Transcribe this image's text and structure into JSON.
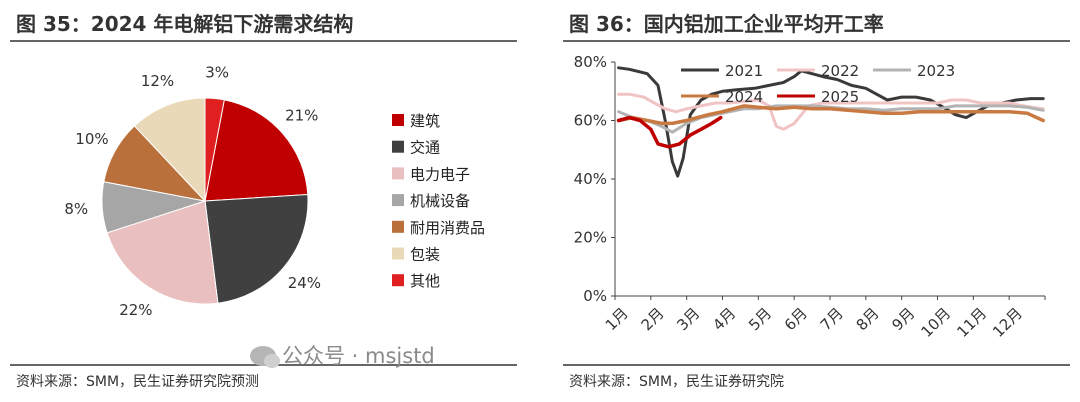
{
  "left": {
    "title": "图 35：2024 年电解铝下游需求结构",
    "source": "资料来源：SMM，民生证券研究院预测"
  },
  "right": {
    "title": "图 36：国内铝加工企业平均开工率",
    "source": "资料来源：SMM，民生证券研究院"
  },
  "watermark": "公众号 · msjstd",
  "chart_data": [
    {
      "type": "pie",
      "title": "2024 年电解铝下游需求结构",
      "slices": [
        {
          "label": "建筑",
          "value": 21,
          "display": "21%",
          "color": "#c00000"
        },
        {
          "label": "交通",
          "value": 24,
          "display": "24%",
          "color": "#404040"
        },
        {
          "label": "电力电子",
          "value": 22,
          "display": "22%",
          "color": "#eabfbf"
        },
        {
          "label": "机械设备",
          "value": 8,
          "display": "8%",
          "color": "#a6a6a6"
        },
        {
          "label": "耐用消费品",
          "value": 10,
          "display": "10%",
          "color": "#b9703a"
        },
        {
          "label": "包装",
          "value": 12,
          "display": "12%",
          "color": "#ead9b8"
        },
        {
          "label": "其他",
          "value": 3,
          "display": "3%",
          "color": "#e02020"
        }
      ],
      "legend_position": "right"
    },
    {
      "type": "line",
      "title": "国内铝加工企业平均开工率",
      "x_tick_labels": [
        "1月",
        "2月",
        "3月",
        "4月",
        "5月",
        "6月",
        "7月",
        "8月",
        "9月",
        "10月",
        "11月",
        "12月"
      ],
      "y_tick_labels": [
        "0%",
        "20%",
        "40%",
        "60%",
        "80%"
      ],
      "ylim": [
        0,
        80
      ],
      "xlim": [
        0,
        12
      ],
      "legend_position": "top",
      "series": [
        {
          "name": "2021",
          "color": "#3a3a3a",
          "x": [
            0.1,
            0.4,
            0.9,
            1.2,
            1.4,
            1.6,
            1.75,
            1.9,
            2.1,
            2.4,
            2.7,
            3.0,
            3.4,
            3.9,
            4.3,
            4.7,
            5.0,
            5.2,
            5.5,
            5.8,
            6.2,
            6.6,
            7.0,
            7.3,
            7.6,
            8.0,
            8.4,
            8.8,
            9.1,
            9.5,
            9.8,
            10.1,
            10.4,
            10.8,
            11.2,
            11.6,
            11.95
          ],
          "y": [
            78,
            77.5,
            76,
            72,
            60,
            46,
            41,
            47,
            62,
            67,
            69,
            70,
            70.5,
            71,
            72,
            73,
            75,
            77,
            76,
            75,
            74,
            72,
            71,
            69,
            67,
            68,
            68,
            67,
            65,
            62,
            61,
            63,
            65,
            66,
            67,
            67.5,
            67.5
          ]
        },
        {
          "name": "2022",
          "color": "#f0c4c4",
          "x": [
            0.1,
            0.4,
            0.8,
            1.1,
            1.4,
            1.7,
            2.0,
            2.4,
            2.8,
            3.2,
            3.6,
            4.0,
            4.3,
            4.5,
            4.7,
            5.0,
            5.4,
            5.8,
            6.2,
            6.6,
            7.0,
            7.4,
            7.8,
            8.2,
            8.6,
            9.0,
            9.4,
            9.8,
            10.2,
            10.6,
            11.0,
            11.4,
            11.95
          ],
          "y": [
            69,
            69,
            68,
            66,
            64,
            63,
            64,
            65,
            66,
            66,
            66.5,
            67,
            65,
            58,
            57,
            59,
            65,
            66,
            66,
            66,
            66,
            66,
            66,
            66,
            66,
            66,
            67,
            67,
            66,
            66,
            66,
            65,
            64
          ]
        },
        {
          "name": "2023",
          "color": "#b3b3b3",
          "x": [
            0.1,
            0.5,
            0.9,
            1.3,
            1.6,
            2.0,
            2.4,
            2.8,
            3.2,
            3.6,
            4.0,
            4.5,
            5.0,
            5.5,
            6.0,
            6.5,
            7.0,
            7.5,
            8.0,
            8.5,
            9.0,
            9.5,
            10.0,
            10.5,
            11.0,
            11.5,
            11.95
          ],
          "y": [
            63,
            61,
            60,
            58,
            56,
            59,
            61,
            62,
            63,
            64,
            64,
            65,
            65,
            65,
            64.5,
            64,
            64,
            63.5,
            64,
            64,
            64,
            65,
            65,
            65,
            65,
            64.5,
            63.5
          ]
        },
        {
          "name": "2024",
          "color": "#c87a42",
          "x": [
            0.1,
            0.5,
            0.9,
            1.3,
            1.6,
            2.0,
            2.3,
            2.6,
            3.0,
            3.3,
            3.6,
            4.0,
            4.5,
            5.0,
            5.5,
            6.0,
            6.5,
            7.0,
            7.5,
            8.0,
            8.5,
            9.0,
            9.5,
            10.0,
            10.5,
            11.0,
            11.5,
            11.95
          ],
          "y": [
            60,
            61,
            60,
            59,
            59,
            60,
            61,
            62,
            63,
            64,
            65,
            64.5,
            64,
            64.5,
            64,
            64,
            63.5,
            63,
            62.5,
            62.5,
            63,
            63,
            63,
            63,
            63,
            63,
            62.5,
            60
          ]
        },
        {
          "name": "2025",
          "color": "#c00000",
          "x": [
            0.1,
            0.4,
            0.7,
            1.0,
            1.2,
            1.5,
            1.8,
            2.1,
            2.4,
            2.7,
            2.95
          ],
          "y": [
            60,
            61,
            60,
            57,
            52,
            51,
            52,
            55,
            57,
            59,
            61
          ]
        }
      ]
    }
  ]
}
